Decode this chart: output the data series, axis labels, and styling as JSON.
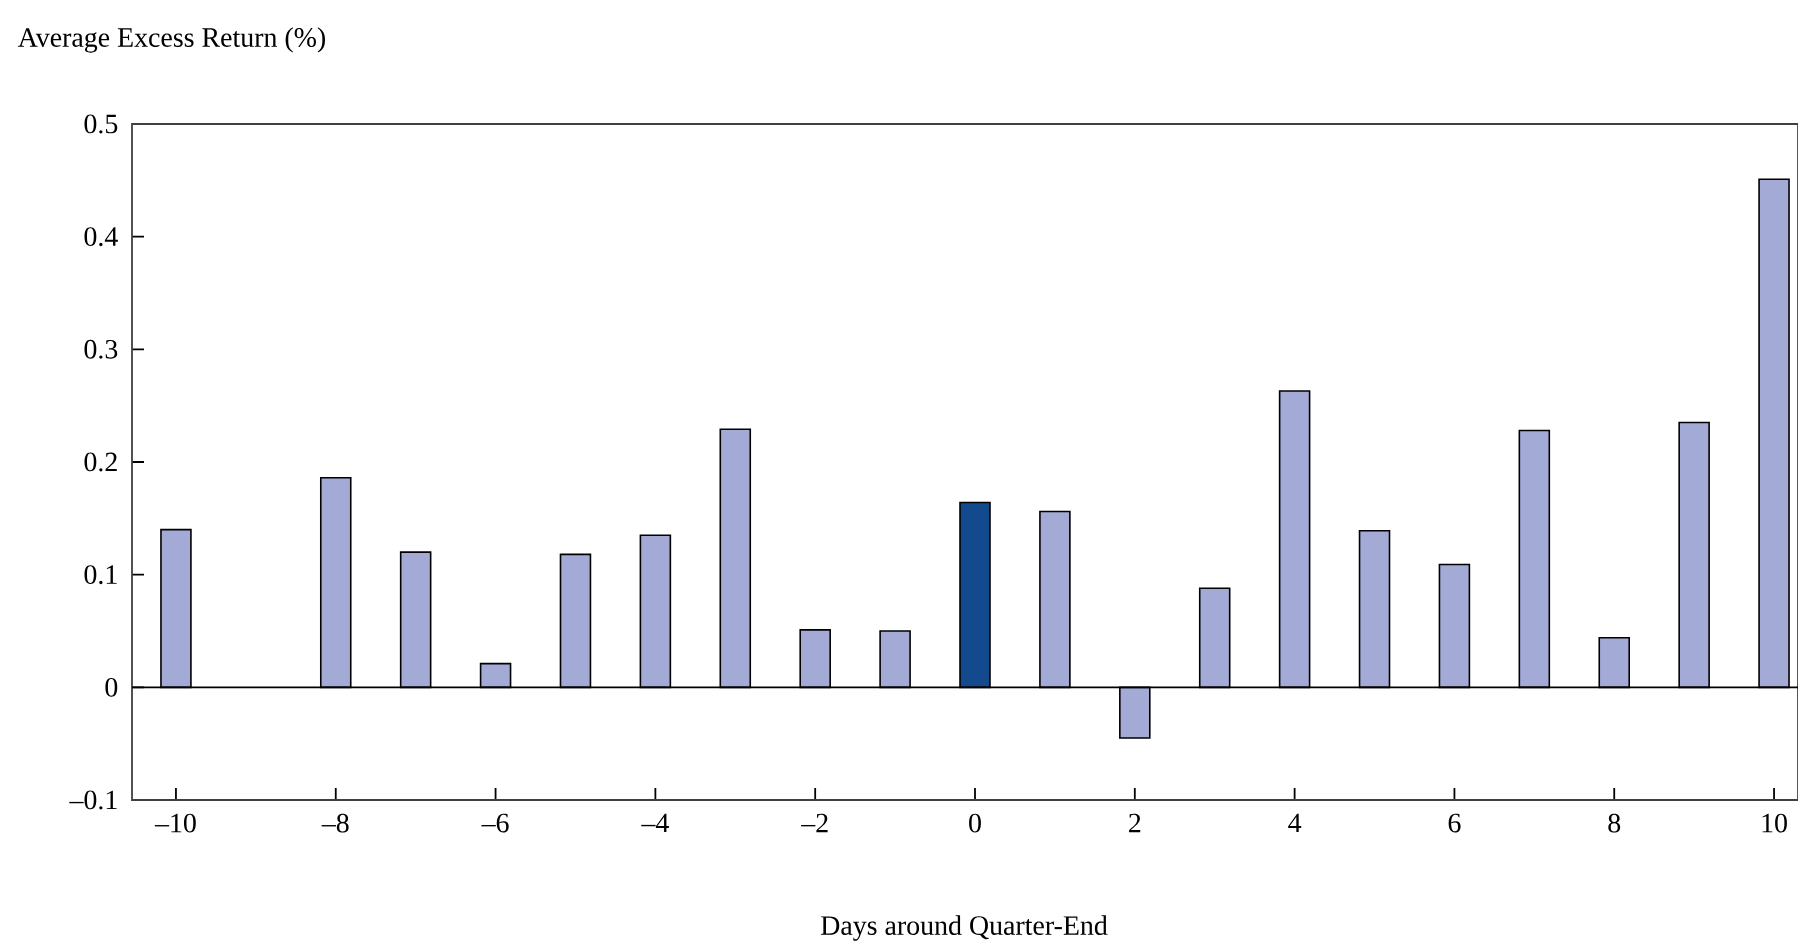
{
  "chart_data": {
    "type": "bar",
    "xlabel": "Days around Quarter-End",
    "ylabel": "Average Excess Return (%)",
    "x": [
      -10,
      -9,
      -8,
      -7,
      -6,
      -5,
      -4,
      -3,
      -2,
      -1,
      0,
      1,
      2,
      3,
      4,
      5,
      6,
      7,
      8,
      9,
      10
    ],
    "values": [
      0.14,
      null,
      0.186,
      0.12,
      0.021,
      0.118,
      0.135,
      0.229,
      0.051,
      0.05,
      0.164,
      0.156,
      -0.045,
      0.088,
      0.263,
      0.139,
      0.109,
      0.228,
      0.044,
      0.235,
      0.451
    ],
    "colors": [
      "#a3aad6",
      "#a3aad6",
      "#a3aad6",
      "#a3aad6",
      "#a3aad6",
      "#a3aad6",
      "#a3aad6",
      "#a3aad6",
      "#a3aad6",
      "#a3aad6",
      "#134a8e",
      "#a3aad6",
      "#a3aad6",
      "#a3aad6",
      "#a3aad6",
      "#a3aad6",
      "#a3aad6",
      "#a3aad6",
      "#a3aad6",
      "#a3aad6",
      "#a3aad6"
    ],
    "xlim": [
      -10.55,
      10.3
    ],
    "ylim": [
      -0.1,
      0.5
    ],
    "xticks": [
      {
        "value": -10,
        "label": "–10"
      },
      {
        "value": -8,
        "label": "–8"
      },
      {
        "value": -6,
        "label": "–6"
      },
      {
        "value": -4,
        "label": "–4"
      },
      {
        "value": -2,
        "label": "–2"
      },
      0,
      2,
      4,
      6,
      8,
      10
    ],
    "yticks": [
      {
        "value": -0.1,
        "label": "–0.1"
      },
      0,
      0.1,
      0.2,
      0.3,
      0.4,
      0.5
    ],
    "ref_lines": [
      {
        "axis": "y",
        "value": 0,
        "color": "#000000"
      }
    ],
    "grid": false
  }
}
